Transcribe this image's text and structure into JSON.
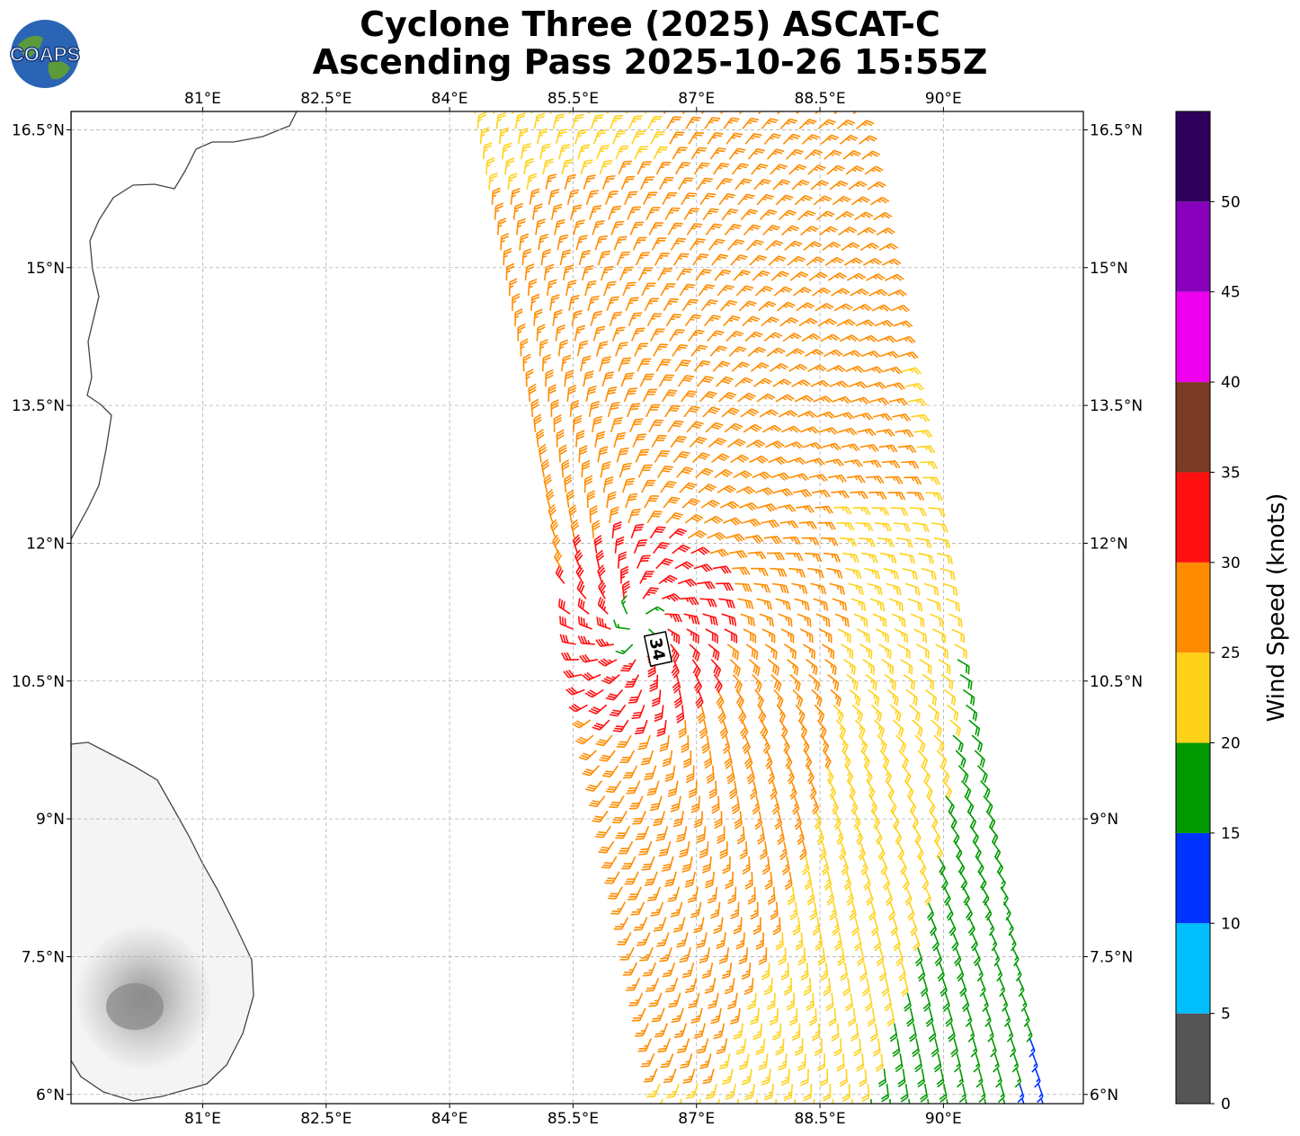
{
  "header": {
    "title_line1": "Cyclone Three (2025) ASCAT-C",
    "title_line2": "Ascending Pass 2025-10-26 15:55Z",
    "logo_text": "COAPS"
  },
  "map": {
    "lon_range": [
      79.4,
      91.7
    ],
    "lat_range": [
      5.9,
      16.7
    ],
    "lon_ticks": [
      "81°E",
      "82.5°E",
      "84°E",
      "85.5°E",
      "87°E",
      "88.5°E",
      "90°E"
    ],
    "lat_ticks": [
      "16.5°N",
      "15°N",
      "13.5°N",
      "12°N",
      "10.5°N",
      "9°N",
      "7.5°N",
      "6°N"
    ],
    "gridlines": true,
    "storm_center_label": "34",
    "land": [
      "India east coast",
      "Sri Lanka"
    ]
  },
  "colorbar": {
    "label": "Wind Speed (knots)",
    "tick_labels": [
      "0",
      "5",
      "10",
      "15",
      "20",
      "25",
      "30",
      "35",
      "40",
      "45",
      "50"
    ],
    "bins": [
      {
        "min": 0,
        "max": 5,
        "color": "#555555"
      },
      {
        "min": 5,
        "max": 10,
        "color": "#00bfff"
      },
      {
        "min": 10,
        "max": 15,
        "color": "#0033ff"
      },
      {
        "min": 15,
        "max": 20,
        "color": "#009900"
      },
      {
        "min": 20,
        "max": 25,
        "color": "#ffd21a"
      },
      {
        "min": 25,
        "max": 30,
        "color": "#ff8c00"
      },
      {
        "min": 30,
        "max": 35,
        "color": "#ff1010"
      },
      {
        "min": 35,
        "max": 40,
        "color": "#7b3a24"
      },
      {
        "min": 40,
        "max": 45,
        "color": "#ee00ee"
      },
      {
        "min": 45,
        "max": 50,
        "color": "#8800bb"
      },
      {
        "min": 50,
        "max": 55,
        "color": "#2e005c"
      }
    ]
  }
}
